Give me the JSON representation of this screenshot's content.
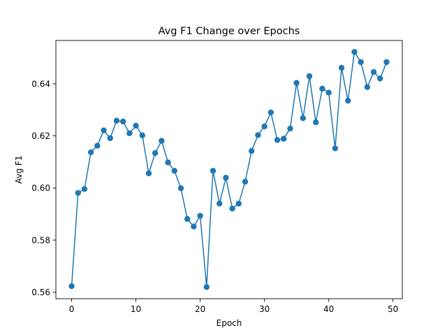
{
  "chart_data": {
    "type": "line",
    "title": "Avg F1 Change over Epochs",
    "xlabel": "Epoch",
    "ylabel": "Avg F1",
    "xlim": [
      -2.45,
      51.45
    ],
    "ylim": [
      0.5575,
      0.6566
    ],
    "xticks": [
      0,
      10,
      20,
      30,
      40,
      50
    ],
    "xtick_labels": [
      "0",
      "10",
      "20",
      "30",
      "40",
      "50"
    ],
    "yticks": [
      0.56,
      0.58,
      0.6,
      0.62,
      0.64
    ],
    "ytick_labels": [
      "0.56",
      "0.58",
      "0.60",
      "0.62",
      "0.64"
    ],
    "grid": false,
    "legend": false,
    "marker": "circle",
    "color": "#1f77b4",
    "x": [
      0,
      1,
      2,
      3,
      4,
      5,
      6,
      7,
      8,
      9,
      10,
      11,
      12,
      13,
      14,
      15,
      16,
      17,
      18,
      19,
      20,
      21,
      22,
      23,
      24,
      25,
      26,
      27,
      28,
      29,
      30,
      31,
      32,
      33,
      34,
      35,
      36,
      37,
      38,
      39,
      40,
      41,
      42,
      43,
      44,
      45,
      46,
      47,
      48,
      49
    ],
    "y": [
      0.5623,
      0.5981,
      0.5996,
      0.6137,
      0.6162,
      0.6221,
      0.6191,
      0.6258,
      0.6255,
      0.621,
      0.6239,
      0.6202,
      0.6056,
      0.6134,
      0.6181,
      0.6098,
      0.6066,
      0.5999,
      0.5881,
      0.5852,
      0.5893,
      0.562,
      0.6066,
      0.594,
      0.6039,
      0.5921,
      0.594,
      0.6024,
      0.6142,
      0.6203,
      0.6236,
      0.629,
      0.6184,
      0.6189,
      0.6228,
      0.6403,
      0.6268,
      0.6429,
      0.6252,
      0.6381,
      0.6366,
      0.6152,
      0.6461,
      0.6335,
      0.6522,
      0.6483,
      0.6387,
      0.6445,
      0.642,
      0.6483
    ]
  }
}
